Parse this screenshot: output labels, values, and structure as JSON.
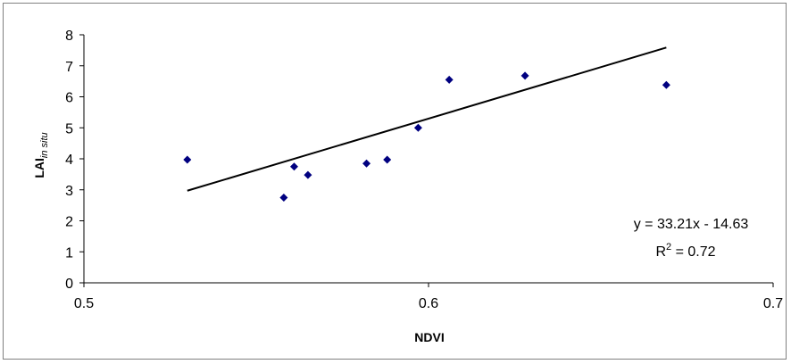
{
  "chart_data": {
    "type": "scatter",
    "title": "",
    "xlabel": "NDVI",
    "ylabel_main": "LAI",
    "ylabel_sub": "in situ",
    "xlim": [
      0.5,
      0.7
    ],
    "ylim": [
      0,
      8
    ],
    "x_ticks": [
      "0.5",
      "0.6",
      "0.7"
    ],
    "x_tick_values": [
      0.5,
      0.6,
      0.7
    ],
    "y_ticks": [
      "0",
      "1",
      "2",
      "3",
      "4",
      "5",
      "6",
      "7",
      "8"
    ],
    "y_tick_values": [
      0,
      1,
      2,
      3,
      4,
      5,
      6,
      7,
      8
    ],
    "grid": false,
    "legend": "none",
    "marker_color": "#000080",
    "points": [
      {
        "x": 0.53,
        "y": 3.97
      },
      {
        "x": 0.558,
        "y": 2.75
      },
      {
        "x": 0.561,
        "y": 3.75
      },
      {
        "x": 0.565,
        "y": 3.48
      },
      {
        "x": 0.582,
        "y": 3.85
      },
      {
        "x": 0.588,
        "y": 3.97
      },
      {
        "x": 0.597,
        "y": 5.0
      },
      {
        "x": 0.606,
        "y": 6.55
      },
      {
        "x": 0.628,
        "y": 6.68
      },
      {
        "x": 0.669,
        "y": 6.38
      }
    ],
    "trendline": {
      "slope": 33.21,
      "intercept": -14.63,
      "x_range": [
        0.53,
        0.669
      ],
      "equation_label": "y = 33.21x - 14.63",
      "r2_prefix": "R",
      "r2_sup": "2",
      "r2_value": " = 0.72"
    }
  }
}
